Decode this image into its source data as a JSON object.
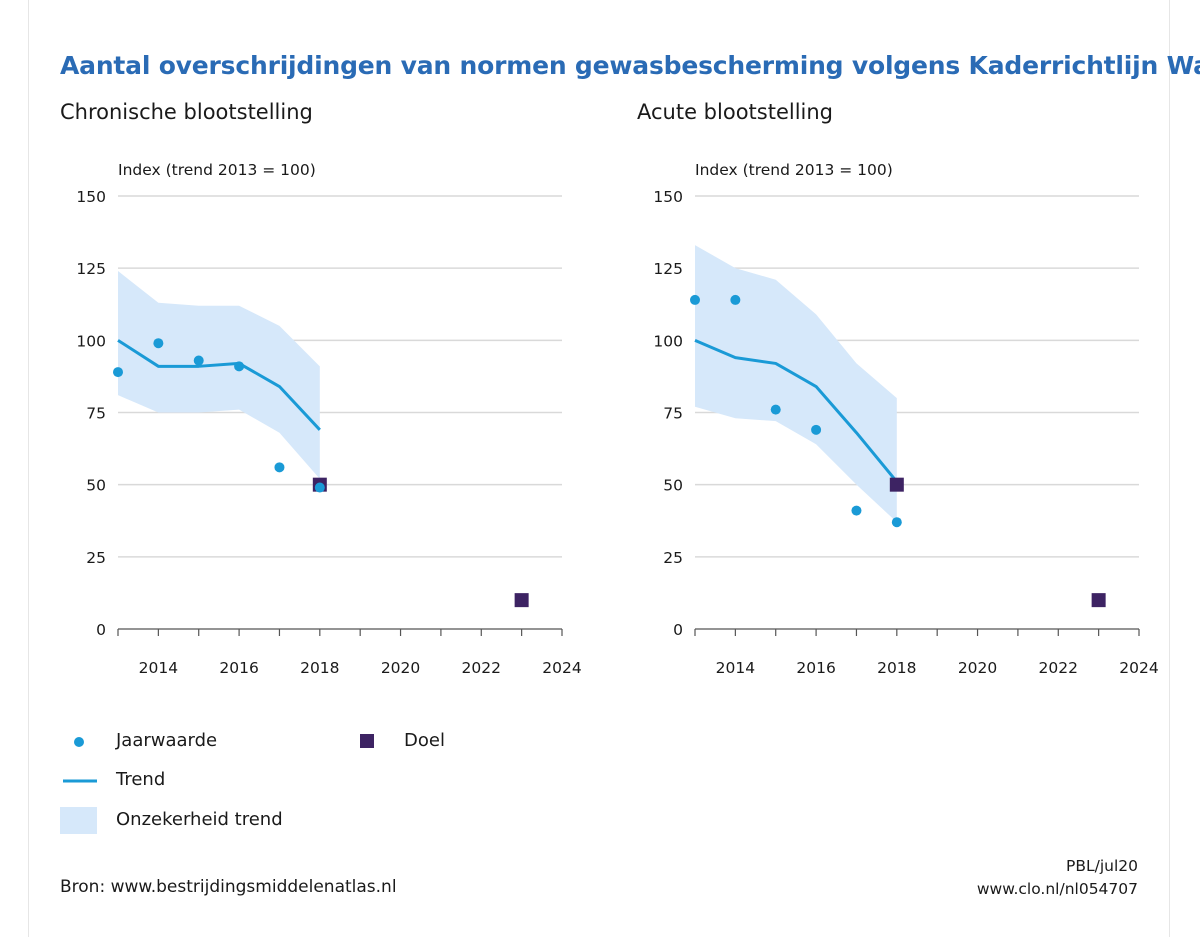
{
  "title": "Aantal overschrijdingen van normen gewasbescherming volgens Kaderrichtlijn Water",
  "colors": {
    "title": "#2a6bb5",
    "trend": "#1a9ad6",
    "dot": "#1a9ad6",
    "band": "#d6e8fa",
    "goal": "#3d2363",
    "grid": "#d9d9d9"
  },
  "legend": {
    "jaarwaarde": "Jaarwaarde",
    "doel": "Doel",
    "trend": "Trend",
    "onzekerheid": "Onzekerheid trend"
  },
  "footer": {
    "bron": "Bron: www.bestrijdingsmiddelenatlas.nl",
    "credit": "PBL/jul20",
    "url": "www.clo.nl/nl054707"
  },
  "chart_data": [
    {
      "type": "line",
      "title": "Chronische blootstelling",
      "ylabel": "Index (trend 2013 = 100)",
      "xlim": [
        2013,
        2024
      ],
      "ylim": [
        0,
        150
      ],
      "xticks": [
        2014,
        2016,
        2018,
        2020,
        2022,
        2024
      ],
      "yticks": [
        0,
        25,
        50,
        75,
        100,
        125,
        150
      ],
      "grid": true,
      "series": [
        {
          "name": "Trend",
          "x": [
            2013,
            2014,
            2015,
            2016,
            2017,
            2018
          ],
          "values": [
            100,
            91,
            91,
            92,
            84,
            69
          ]
        },
        {
          "name": "Onzekerheid trend",
          "x": [
            2013,
            2014,
            2015,
            2016,
            2017,
            2018
          ],
          "lower": [
            81,
            75,
            75,
            76,
            68,
            52
          ],
          "upper": [
            124,
            113,
            112,
            112,
            105,
            91
          ]
        },
        {
          "name": "Jaarwaarde",
          "x": [
            2013,
            2014,
            2015,
            2016,
            2017,
            2018
          ],
          "values": [
            89,
            99,
            93,
            91,
            56,
            49
          ]
        },
        {
          "name": "Doel",
          "x": [
            2018,
            2023
          ],
          "values": [
            50,
            10
          ]
        }
      ]
    },
    {
      "type": "line",
      "title": "Acute blootstelling",
      "ylabel": "Index (trend 2013 = 100)",
      "xlim": [
        2013,
        2024
      ],
      "ylim": [
        0,
        150
      ],
      "xticks": [
        2014,
        2016,
        2018,
        2020,
        2022,
        2024
      ],
      "yticks": [
        0,
        25,
        50,
        75,
        100,
        125,
        150
      ],
      "grid": true,
      "series": [
        {
          "name": "Trend",
          "x": [
            2013,
            2014,
            2015,
            2016,
            2017,
            2018
          ],
          "values": [
            100,
            94,
            92,
            84,
            68,
            51
          ]
        },
        {
          "name": "Onzekerheid trend",
          "x": [
            2013,
            2014,
            2015,
            2016,
            2017,
            2018
          ],
          "lower": [
            77,
            73,
            72,
            64,
            50,
            37
          ],
          "upper": [
            133,
            125,
            121,
            109,
            92,
            80
          ]
        },
        {
          "name": "Jaarwaarde",
          "x": [
            2013,
            2014,
            2015,
            2016,
            2017,
            2018
          ],
          "values": [
            114,
            114,
            76,
            69,
            41,
            37
          ]
        },
        {
          "name": "Doel",
          "x": [
            2018,
            2023
          ],
          "values": [
            50,
            10
          ]
        }
      ]
    }
  ]
}
